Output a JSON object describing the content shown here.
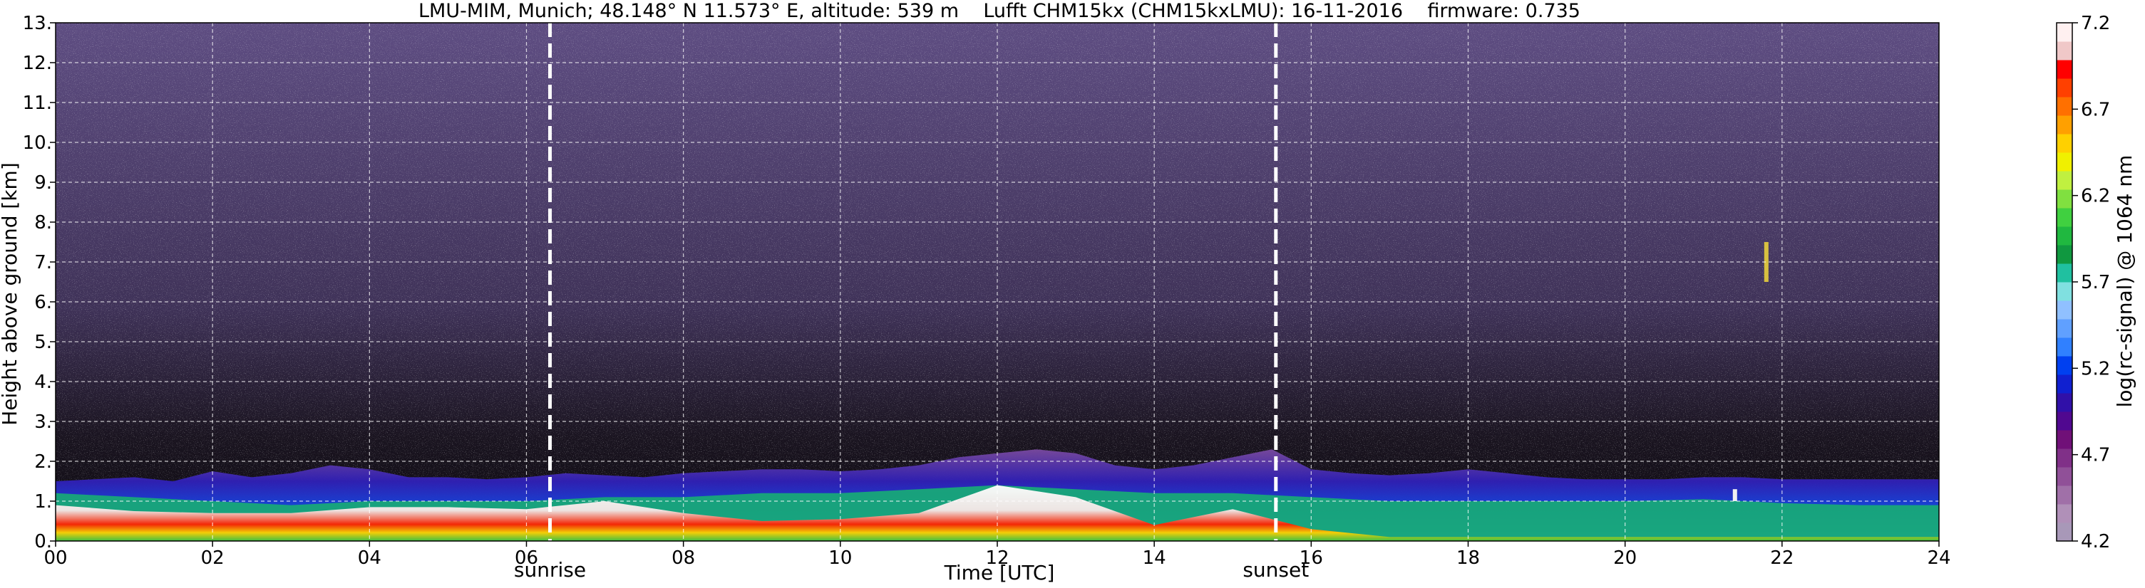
{
  "chart_data": {
    "type": "heatmap",
    "title": "LMU-MIM, Munich; 48.148° N 11.573° E, altitude: 539 m    Lufft CHM15kx (CHM15kxLMU): 16-11-2016    firmware: 0.735",
    "xlabel": "Time [UTC]",
    "ylabel": "Height above ground [km]",
    "xlim": [
      0,
      24
    ],
    "ylim": [
      0,
      13
    ],
    "x_ticks": [
      0,
      2,
      4,
      6,
      8,
      10,
      12,
      14,
      16,
      18,
      20,
      22,
      24
    ],
    "x_tick_labels": [
      "00",
      "02",
      "04",
      "06",
      "08",
      "10",
      "12",
      "14",
      "16",
      "18",
      "20",
      "22",
      "24"
    ],
    "y_ticks": [
      0,
      1,
      2,
      3,
      4,
      5,
      6,
      7,
      8,
      9,
      10,
      11,
      12,
      13
    ],
    "y_tick_labels": [
      "0.",
      "1.",
      "2.",
      "3.",
      "4.",
      "5.",
      "6.",
      "7.",
      "8.",
      "9.",
      "10.",
      "11.",
      "12.",
      "13."
    ],
    "grid": true,
    "annotations": [
      {
        "name": "sunrise",
        "text": "sunrise",
        "x": 6.3
      },
      {
        "name": "sunset",
        "text": "sunset",
        "x": 15.55
      }
    ],
    "colorbar": {
      "label": "log(rc-signal) @ 1064 nm",
      "range": [
        4.2,
        7.2
      ],
      "ticks": [
        4.2,
        4.7,
        5.2,
        5.7,
        6.2,
        6.7,
        7.2
      ],
      "tick_labels": [
        "4.2",
        "4.7",
        "5.2",
        "5.7",
        "6.2",
        "6.7",
        "7.2"
      ],
      "colors": [
        "#a898b8",
        "#b090b8",
        "#a070a8",
        "#905098",
        "#803088",
        "#701078",
        "#500890",
        "#3010a8",
        "#1020d0",
        "#0040f0",
        "#3080ff",
        "#60a0ff",
        "#90c0ff",
        "#80e0e0",
        "#20c0a0",
        "#109840",
        "#20b840",
        "#40d040",
        "#80e040",
        "#c0f040",
        "#f0f000",
        "#ffd000",
        "#ffa000",
        "#ff7000",
        "#ff4000",
        "#ff0000",
        "#f0c8c8",
        "#fff0f0"
      ]
    },
    "layers": [
      {
        "name": "boundary-layer",
        "points": [
          [
            0,
            1.5
          ],
          [
            0.5,
            1.55
          ],
          [
            1,
            1.6
          ],
          [
            1.5,
            1.5
          ],
          [
            2,
            1.75
          ],
          [
            2.5,
            1.6
          ],
          [
            3,
            1.7
          ],
          [
            3.5,
            1.9
          ],
          [
            4,
            1.8
          ],
          [
            4.5,
            1.6
          ],
          [
            5,
            1.6
          ],
          [
            5.5,
            1.55
          ],
          [
            6,
            1.6
          ],
          [
            6.5,
            1.7
          ],
          [
            7,
            1.65
          ],
          [
            7.5,
            1.6
          ],
          [
            8,
            1.7
          ],
          [
            8.5,
            1.75
          ],
          [
            9,
            1.8
          ],
          [
            9.5,
            1.8
          ],
          [
            10,
            1.75
          ],
          [
            10.5,
            1.8
          ],
          [
            11,
            1.9
          ],
          [
            11.5,
            2.1
          ],
          [
            12,
            2.2
          ],
          [
            12.5,
            2.3
          ],
          [
            13,
            2.2
          ],
          [
            13.5,
            1.9
          ],
          [
            14,
            1.8
          ],
          [
            14.5,
            1.9
          ],
          [
            15,
            2.1
          ],
          [
            15.5,
            2.3
          ],
          [
            16,
            1.8
          ],
          [
            16.5,
            1.7
          ],
          [
            17,
            1.65
          ],
          [
            17.5,
            1.7
          ],
          [
            18,
            1.8
          ],
          [
            18.5,
            1.7
          ],
          [
            19,
            1.6
          ],
          [
            19.5,
            1.55
          ],
          [
            20,
            1.55
          ],
          [
            20.5,
            1.55
          ],
          [
            21,
            1.6
          ],
          [
            21.5,
            1.6
          ],
          [
            22,
            1.55
          ],
          [
            22.5,
            1.55
          ],
          [
            23,
            1.55
          ],
          [
            23.5,
            1.55
          ],
          [
            24,
            1.55
          ]
        ]
      },
      {
        "name": "residual-layer-top",
        "points": [
          [
            0,
            1.2
          ],
          [
            1,
            1.1
          ],
          [
            2,
            1.0
          ],
          [
            3,
            0.9
          ],
          [
            4,
            1.0
          ],
          [
            5,
            1.0
          ],
          [
            6,
            1.0
          ],
          [
            7,
            1.1
          ],
          [
            8,
            1.1
          ],
          [
            9,
            1.2
          ],
          [
            10,
            1.2
          ],
          [
            11,
            1.3
          ],
          [
            12,
            1.4
          ],
          [
            13,
            1.3
          ],
          [
            14,
            1.2
          ],
          [
            15,
            1.2
          ],
          [
            16,
            1.1
          ],
          [
            17,
            1.0
          ],
          [
            18,
            1.0
          ],
          [
            19,
            1.0
          ],
          [
            20,
            1.0
          ],
          [
            21,
            1.05
          ],
          [
            22,
            0.95
          ],
          [
            23,
            0.9
          ],
          [
            24,
            0.9
          ]
        ]
      },
      {
        "name": "aerosol-saturated",
        "points": [
          [
            0,
            0.9
          ],
          [
            1,
            0.75
          ],
          [
            2,
            0.7
          ],
          [
            3,
            0.7
          ],
          [
            4,
            0.85
          ],
          [
            5,
            0.85
          ],
          [
            6,
            0.8
          ],
          [
            7,
            1.0
          ],
          [
            8,
            0.7
          ],
          [
            9,
            0.5
          ],
          [
            10,
            0.55
          ],
          [
            11,
            0.7
          ],
          [
            12,
            1.4
          ],
          [
            13,
            1.1
          ],
          [
            14,
            0.4
          ],
          [
            15,
            0.8
          ],
          [
            16,
            0.3
          ],
          [
            17,
            0.1
          ],
          [
            18,
            0.1
          ],
          [
            19,
            0.1
          ],
          [
            20,
            0.1
          ],
          [
            21,
            0.1
          ],
          [
            22,
            0.1
          ],
          [
            23,
            0.1
          ],
          [
            24,
            0.1
          ]
        ]
      }
    ],
    "features": [
      {
        "name": "cloud-fragment",
        "x": 21.8,
        "ymin": 6.5,
        "ymax": 7.5
      },
      {
        "name": "elevated-layer",
        "x": 21.4,
        "ymin": 1.0,
        "ymax": 1.3
      }
    ]
  }
}
